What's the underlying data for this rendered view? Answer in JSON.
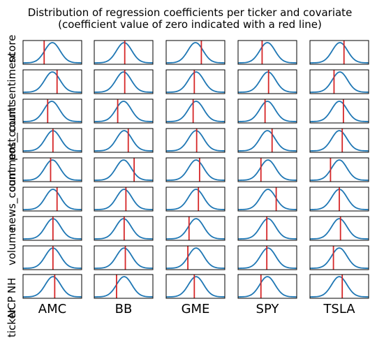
{
  "chart_data": {
    "type": "line",
    "title": "Distribution of regression coefficients per ticker and covariate",
    "subtitle": "(coefficient value of zero indicated with a red line)",
    "columns": [
      "AMC",
      "BB",
      "GME",
      "SPY",
      "TSLA"
    ],
    "row_labels": [
      "score",
      "sentiment",
      "post_count",
      "comment_count",
      "news_count",
      "volume",
      "NH",
      "NCP",
      "ticker"
    ],
    "distribution": "normal density curve per panel",
    "line_color": "#1f77b4",
    "zero_line_color": "#d62728",
    "zero_position_in_panel": [
      [
        0.36,
        0.52,
        0.6,
        0.41,
        0.58
      ],
      [
        0.58,
        0.52,
        0.48,
        0.52,
        0.41
      ],
      [
        0.42,
        0.4,
        0.46,
        0.46,
        0.57
      ],
      [
        0.51,
        0.58,
        0.52,
        0.58,
        0.55
      ],
      [
        0.47,
        0.68,
        0.57,
        0.39,
        0.35
      ],
      [
        0.58,
        0.54,
        0.55,
        0.65,
        0.5
      ],
      [
        0.51,
        0.51,
        0.39,
        0.49,
        0.52
      ],
      [
        0.51,
        0.53,
        0.37,
        0.49,
        0.4
      ],
      [
        0.54,
        0.38,
        0.48,
        0.39,
        0.55
      ]
    ],
    "curve_center_in_panel": [
      [
        0.5,
        0.51,
        0.5,
        0.5,
        0.51
      ],
      [
        0.5,
        0.5,
        0.51,
        0.51,
        0.51
      ],
      [
        0.49,
        0.5,
        0.51,
        0.5,
        0.5
      ],
      [
        0.51,
        0.51,
        0.51,
        0.5,
        0.5
      ],
      [
        0.5,
        0.5,
        0.51,
        0.51,
        0.5
      ],
      [
        0.51,
        0.51,
        0.51,
        0.51,
        0.5
      ],
      [
        0.51,
        0.5,
        0.51,
        0.51,
        0.5
      ],
      [
        0.51,
        0.51,
        0.51,
        0.51,
        0.5
      ],
      [
        0.51,
        0.51,
        0.51,
        0.5,
        0.5
      ]
    ]
  }
}
